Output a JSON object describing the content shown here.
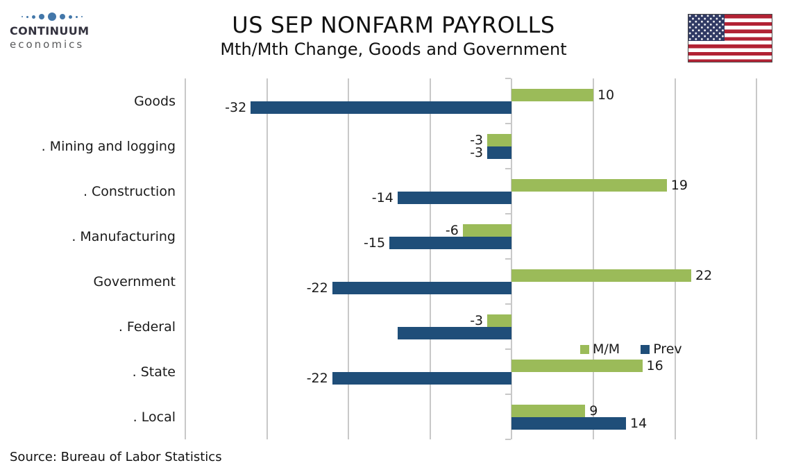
{
  "header": {
    "logo": {
      "brand": "CONTINUUM",
      "sub": "economics",
      "dot_color": "#4377a9",
      "dot_sizes": [
        2,
        3,
        5,
        8,
        12,
        8,
        5,
        3,
        2
      ]
    },
    "title": "US SEP NONFARM PAYROLLS",
    "subtitle": "Mth/Mth Change, Goods and Government",
    "flag_colors": {
      "red": "#b22234",
      "navy": "#303a64",
      "white": "#ffffff"
    }
  },
  "chart_data": {
    "type": "bar",
    "orientation": "horizontal",
    "title": "US SEP NONFARM PAYROLLS",
    "subtitle": "Mth/Mth Change, Goods and Government",
    "categories": [
      "Goods",
      ". Mining and logging",
      ". Construction",
      ". Manufacturing",
      "Government",
      ". Federal",
      ". State",
      ". Local"
    ],
    "series": [
      {
        "name": "M/M",
        "color": "#9bbb59",
        "values": [
          10,
          -3,
          19,
          -6,
          22,
          -3,
          16,
          9
        ],
        "labels": [
          "10",
          "-3",
          "19",
          "-6",
          "22",
          "-3",
          "16",
          "9"
        ]
      },
      {
        "name": "Prev",
        "color": "#1f4e79",
        "values": [
          -32,
          -3,
          -14,
          -15,
          -22,
          -14,
          -22,
          14
        ],
        "labels": [
          "-32",
          "-3",
          "-14",
          "-15",
          "-22",
          "",
          "-22",
          "14"
        ]
      }
    ],
    "xlim": [
      -40,
      30
    ],
    "grid_interval": 10,
    "grid_color": "#c8c8c8",
    "x_tick_labels_visible": false,
    "data_labels": true,
    "legend_position": "inside-right"
  },
  "legend": {
    "items": [
      {
        "label": "M/M",
        "color": "#9bbb59"
      },
      {
        "label": "Prev",
        "color": "#1f4e79"
      }
    ]
  },
  "footer": {
    "source": "Source: Bureau of Labor Statistics"
  }
}
